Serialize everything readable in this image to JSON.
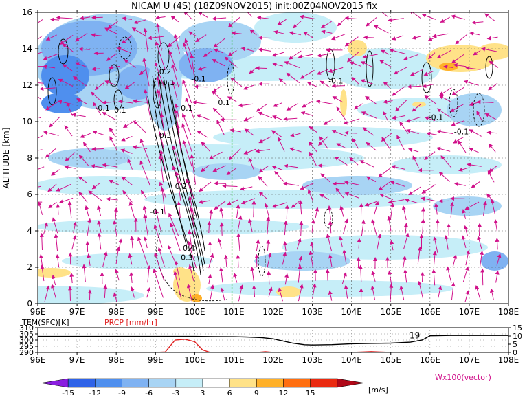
{
  "chart_data": [
    {
      "type": "heatmap",
      "title": "NICAM U (4S) (18Z09NOV2015) init:00Z04NOV2015 fix",
      "ylabel": "ALTITUDE [km]",
      "xlim": [
        96,
        108
      ],
      "ylim": [
        0,
        16
      ],
      "x_ticks": [
        "96E",
        "97E",
        "98E",
        "99E",
        "100E",
        "101E",
        "102E",
        "103E",
        "104E",
        "105E",
        "106E",
        "107E",
        "108E"
      ],
      "y_ticks": [
        "0",
        "2",
        "4",
        "6",
        "8",
        "10",
        "12",
        "14",
        "16"
      ],
      "grid": true,
      "marker_line_x": 100.95,
      "contour_labels": [
        {
          "text": "0.2",
          "x": 99.25,
          "y": 12.6
        },
        {
          "text": "-0.1",
          "x": 99.3,
          "y": 12.0
        },
        {
          "text": "-0.1",
          "x": 100.1,
          "y": 12.2
        },
        {
          "text": "0.1",
          "x": 100.75,
          "y": 10.9
        },
        {
          "text": "-0.1",
          "x": 97.65,
          "y": 10.6
        },
        {
          "text": "0.1",
          "x": 98.1,
          "y": 10.5
        },
        {
          "text": "0.1",
          "x": 99.8,
          "y": 10.6
        },
        {
          "text": "0.3",
          "x": 99.25,
          "y": 9.1
        },
        {
          "text": "0.2",
          "x": 99.65,
          "y": 6.3
        },
        {
          "text": "-0.1",
          "x": 99.05,
          "y": 4.9
        },
        {
          "text": "0.4",
          "x": 99.85,
          "y": 2.9
        },
        {
          "text": "0.3",
          "x": 99.8,
          "y": 2.4
        },
        {
          "text": "-0.1",
          "x": 103.6,
          "y": 12.1
        },
        {
          "text": "-0.1",
          "x": 106.15,
          "y": 10.1
        },
        {
          "text": "-0.1",
          "x": 106.8,
          "y": 9.3
        }
      ],
      "colorbar": {
        "levels": [
          "-15",
          "-12",
          "-9",
          "-6",
          "-3",
          "3",
          "6",
          "9",
          "12",
          "15"
        ],
        "unit": "[m/s]",
        "colors": [
          "#8a1ee0",
          "#2f63e8",
          "#4f8fee",
          "#7fb2f2",
          "#a8d4f4",
          "#c6eef8",
          "#ffffff",
          "#ffe288",
          "#ffb028",
          "#ff6e10",
          "#ea2a10",
          "#b00818"
        ]
      },
      "vector_label": "Wx100(vector)",
      "colors": {
        "vectors": "#d0108a",
        "contours": "#000000",
        "marker_line": "#22bb22"
      }
    },
    {
      "type": "line",
      "x_ticks": [
        "96E",
        "97E",
        "98E",
        "99E",
        "100E",
        "101E",
        "102E",
        "103E",
        "104E",
        "105E",
        "106E",
        "107E",
        "108E"
      ],
      "xlim": [
        96,
        108
      ],
      "left_axis_label": "TEM(SFC)[K]",
      "left_ticks": [
        "310",
        "305",
        "300",
        "295",
        "290"
      ],
      "ylim_left": [
        290,
        310
      ],
      "right_axis_label": "PRCP [mm/hr]",
      "right_ticks": [
        "15",
        "10",
        "5",
        "0"
      ],
      "ylim_right": [
        0,
        15
      ],
      "series": [
        {
          "name": "TEM(SFC)[K]",
          "color": "#000000",
          "x": [
            96,
            96.5,
            97,
            97.5,
            98,
            98.5,
            99,
            99.5,
            100,
            100.5,
            101,
            101.3,
            101.7,
            102,
            102.5,
            102.8,
            103,
            103.5,
            104,
            104.5,
            105,
            105.5,
            105.8,
            106,
            106.5,
            107,
            107.5,
            108
          ],
          "y": [
            303,
            303,
            303,
            303,
            303,
            303,
            303,
            303,
            303,
            302.8,
            302.7,
            302.5,
            302,
            301,
            297.5,
            296.2,
            296,
            296.3,
            297,
            297.3,
            297.5,
            298.3,
            300,
            303.5,
            303.8,
            303.8,
            303.8,
            303.8
          ]
        },
        {
          "name": "PRCP [mm/hr]",
          "color": "#e02020",
          "x": [
            96,
            99,
            99.25,
            99.5,
            99.75,
            100,
            100.2,
            100.4,
            101,
            101.6,
            101.8,
            102,
            103,
            104,
            104.3,
            104.5,
            104.7,
            105,
            108
          ],
          "y": [
            0,
            0,
            0.3,
            7.5,
            8,
            6.5,
            1.5,
            0,
            0,
            0,
            0.4,
            0,
            0,
            0,
            0.3,
            0.5,
            0.3,
            0,
            0
          ]
        }
      ],
      "annotations": [
        {
          "text": "19",
          "x": 105.85,
          "y": 303.5
        }
      ]
    }
  ]
}
